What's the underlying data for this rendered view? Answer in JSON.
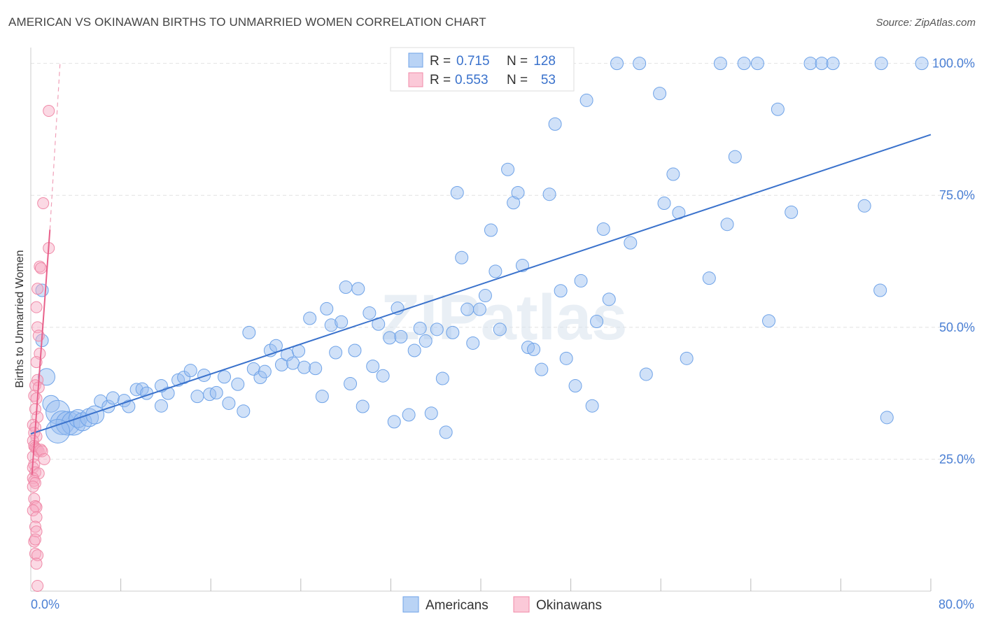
{
  "header": {
    "title": "AMERICAN VS OKINAWAN BIRTHS TO UNMARRIED WOMEN CORRELATION CHART",
    "source": "Source: ZipAtlas.com"
  },
  "watermark": "ZIPatlas",
  "stats_legend": {
    "rows": [
      {
        "r_label": "R =",
        "r_value": "0.715",
        "n_label": "N =",
        "n_value": "128",
        "color": "#6fa3e8"
      },
      {
        "r_label": "R =",
        "r_value": "0.553",
        "n_label": "N =",
        "n_value": "53",
        "color": "#f08aa8"
      }
    ]
  },
  "bottom_legend": [
    "Americans",
    "Okinawans"
  ],
  "chart_data": {
    "type": "scatter",
    "title": "AMERICAN VS OKINAWAN BIRTHS TO UNMARRIED WOMEN CORRELATION CHART",
    "xlabel": "",
    "ylabel": "Births to Unmarried Women",
    "xlim": [
      0,
      80
    ],
    "ylim": [
      0,
      103
    ],
    "x_tick_labels": [
      "0.0%",
      "80.0%"
    ],
    "y_ticks": [
      25,
      50,
      75,
      100
    ],
    "y_tick_labels": [
      "25.0%",
      "50.0%",
      "75.0%",
      "100.0%"
    ],
    "grid": true,
    "legend_position": "top-center",
    "colors": {
      "Americans": "#6fa3e8",
      "Okinawans": "#f08aa8"
    },
    "series": [
      {
        "name": "Americans",
        "trendline": {
          "x": [
            0,
            80
          ],
          "y": [
            29.8,
            86.5
          ]
        },
        "points": [
          [
            1.0,
            47.5
          ],
          [
            1.4,
            40.6
          ],
          [
            1.8,
            35.5
          ],
          [
            2.4,
            33.9
          ],
          [
            2.8,
            31.9
          ],
          [
            3.3,
            31.8
          ],
          [
            3.8,
            31.8
          ],
          [
            4.2,
            32.7
          ],
          [
            4.6,
            32.1
          ],
          [
            5.2,
            32.9
          ],
          [
            5.7,
            33.4
          ],
          [
            6.2,
            36.0
          ],
          [
            6.9,
            35.0
          ],
          [
            7.3,
            36.6
          ],
          [
            8.3,
            36.1
          ],
          [
            8.7,
            35.0
          ],
          [
            9.4,
            38.2
          ],
          [
            9.9,
            38.3
          ],
          [
            10.3,
            37.5
          ],
          [
            11.6,
            35.1
          ],
          [
            12.2,
            37.5
          ],
          [
            13.1,
            40.0
          ],
          [
            13.6,
            40.5
          ],
          [
            14.2,
            41.8
          ],
          [
            14.8,
            36.9
          ],
          [
            15.4,
            40.9
          ],
          [
            15.9,
            37.3
          ],
          [
            16.5,
            37.6
          ],
          [
            17.2,
            40.6
          ],
          [
            17.6,
            35.6
          ],
          [
            18.4,
            39.2
          ],
          [
            18.9,
            34.1
          ],
          [
            19.4,
            49.0
          ],
          [
            19.8,
            42.1
          ],
          [
            20.4,
            40.5
          ],
          [
            21.3,
            45.6
          ],
          [
            21.8,
            46.5
          ],
          [
            22.3,
            42.9
          ],
          [
            22.8,
            44.8
          ],
          [
            23.3,
            43.2
          ],
          [
            23.8,
            45.5
          ],
          [
            24.3,
            42.4
          ],
          [
            24.8,
            51.7
          ],
          [
            25.3,
            42.2
          ],
          [
            25.9,
            36.9
          ],
          [
            26.3,
            53.5
          ],
          [
            26.7,
            50.4
          ],
          [
            27.1,
            45.2
          ],
          [
            27.6,
            51.0
          ],
          [
            28.0,
            57.6
          ],
          [
            28.4,
            39.3
          ],
          [
            28.8,
            45.6
          ],
          [
            29.1,
            57.3
          ],
          [
            29.5,
            35.0
          ],
          [
            30.1,
            52.7
          ],
          [
            30.4,
            42.6
          ],
          [
            30.9,
            50.6
          ],
          [
            31.3,
            40.8
          ],
          [
            31.9,
            48.0
          ],
          [
            32.3,
            32.1
          ],
          [
            32.6,
            53.6
          ],
          [
            32.9,
            48.2
          ],
          [
            33.6,
            33.4
          ],
          [
            34.1,
            45.6
          ],
          [
            34.6,
            49.8
          ],
          [
            35.1,
            47.4
          ],
          [
            35.6,
            33.7
          ],
          [
            36.1,
            49.6
          ],
          [
            36.6,
            40.3
          ],
          [
            36.9,
            30.1
          ],
          [
            37.5,
            49.0
          ],
          [
            37.9,
            75.5
          ],
          [
            38.3,
            63.2
          ],
          [
            38.8,
            53.4
          ],
          [
            39.3,
            47.0
          ],
          [
            39.9,
            53.4
          ],
          [
            40.4,
            56.0
          ],
          [
            40.9,
            68.4
          ],
          [
            41.3,
            60.6
          ],
          [
            41.7,
            49.6
          ],
          [
            42.4,
            79.9
          ],
          [
            42.9,
            73.6
          ],
          [
            43.3,
            75.5
          ],
          [
            43.7,
            61.7
          ],
          [
            44.2,
            46.2
          ],
          [
            44.7,
            45.8
          ],
          [
            45.4,
            42.0
          ],
          [
            46.1,
            75.2
          ],
          [
            46.6,
            88.5
          ],
          [
            47.1,
            56.9
          ],
          [
            47.6,
            44.1
          ],
          [
            48.4,
            38.9
          ],
          [
            48.9,
            58.8
          ],
          [
            49.4,
            93.0
          ],
          [
            49.9,
            35.1
          ],
          [
            50.3,
            51.1
          ],
          [
            50.9,
            68.6
          ],
          [
            51.4,
            55.3
          ],
          [
            52.1,
            100.0
          ],
          [
            53.3,
            66.0
          ],
          [
            54.1,
            100.0
          ],
          [
            54.7,
            41.1
          ],
          [
            55.9,
            94.3
          ],
          [
            56.3,
            73.5
          ],
          [
            57.1,
            79.0
          ],
          [
            57.6,
            71.7
          ],
          [
            58.3,
            44.1
          ],
          [
            60.3,
            59.3
          ],
          [
            61.3,
            100.0
          ],
          [
            61.9,
            69.5
          ],
          [
            62.6,
            82.3
          ],
          [
            63.4,
            100.0
          ],
          [
            64.6,
            100.0
          ],
          [
            65.6,
            51.2
          ],
          [
            66.4,
            91.3
          ],
          [
            67.6,
            71.8
          ],
          [
            69.3,
            100.0
          ],
          [
            70.3,
            100.0
          ],
          [
            71.3,
            100.0
          ],
          [
            74.1,
            73.0
          ],
          [
            75.6,
            100.0
          ],
          [
            76.1,
            32.9
          ],
          [
            75.5,
            57.0
          ],
          [
            79.2,
            100.0
          ],
          [
            1.0,
            57.0
          ],
          [
            2.4,
            30.3
          ],
          [
            11.6,
            38.9
          ],
          [
            20.8,
            41.6
          ]
        ]
      },
      {
        "name": "Okinawans",
        "trendline": {
          "x": [
            0.1,
            1.7
          ],
          "y": [
            22.0,
            68.5
          ]
        },
        "trendline_extension": {
          "x": [
            1.7,
            2.6
          ],
          "y": [
            68.5,
            100.0
          ]
        },
        "points": [
          [
            1.6,
            91.0
          ],
          [
            1.1,
            73.5
          ],
          [
            1.6,
            65.0
          ],
          [
            0.8,
            61.5
          ],
          [
            0.9,
            61.2
          ],
          [
            0.6,
            57.3
          ],
          [
            0.5,
            53.8
          ],
          [
            0.6,
            50.0
          ],
          [
            0.7,
            48.4
          ],
          [
            0.8,
            45.0
          ],
          [
            0.5,
            43.4
          ],
          [
            0.6,
            40.0
          ],
          [
            0.4,
            39.0
          ],
          [
            0.7,
            38.6
          ],
          [
            0.3,
            37.0
          ],
          [
            0.5,
            36.5
          ],
          [
            0.4,
            34.5
          ],
          [
            0.6,
            33.0
          ],
          [
            0.2,
            31.5
          ],
          [
            0.4,
            31.0
          ],
          [
            0.3,
            30.0
          ],
          [
            0.5,
            29.3
          ],
          [
            0.2,
            28.5
          ],
          [
            0.3,
            27.5
          ],
          [
            0.4,
            27.2
          ],
          [
            0.5,
            27.0
          ],
          [
            0.6,
            26.8
          ],
          [
            0.7,
            26.5
          ],
          [
            0.9,
            26.8
          ],
          [
            1.0,
            26.5
          ],
          [
            1.2,
            25.0
          ],
          [
            0.2,
            25.5
          ],
          [
            0.3,
            24.0
          ],
          [
            0.2,
            23.4
          ],
          [
            0.4,
            22.5
          ],
          [
            0.7,
            22.3
          ],
          [
            0.2,
            21.4
          ],
          [
            0.3,
            20.9
          ],
          [
            0.4,
            20.5
          ],
          [
            0.2,
            19.8
          ],
          [
            0.3,
            17.5
          ],
          [
            0.4,
            16.1
          ],
          [
            0.5,
            15.9
          ],
          [
            0.2,
            15.3
          ],
          [
            0.5,
            14.0
          ],
          [
            0.4,
            12.2
          ],
          [
            0.5,
            11.3
          ],
          [
            0.3,
            9.4
          ],
          [
            0.4,
            7.1
          ],
          [
            0.6,
            6.8
          ],
          [
            0.5,
            5.2
          ],
          [
            0.6,
            1.0
          ],
          [
            0.4,
            9.8
          ]
        ]
      }
    ]
  }
}
